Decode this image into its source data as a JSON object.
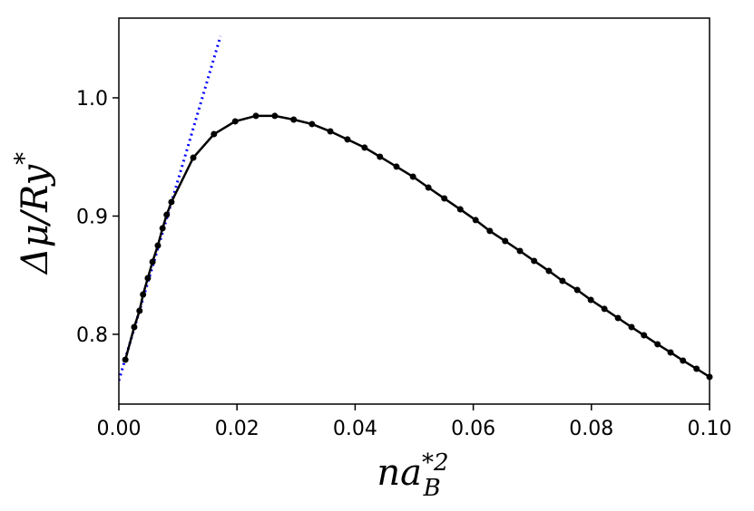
{
  "chart_data": {
    "type": "line",
    "xlabel": {
      "base": "na",
      "sub": "B",
      "sup": "*2"
    },
    "ylabel": {
      "base": "Δμ/Ry",
      "sup": "*"
    },
    "xlim": [
      0,
      0.1
    ],
    "ylim": [
      0.741,
      1.0674
    ],
    "xticks": [
      {
        "value": 0,
        "label": "0.00"
      },
      {
        "value": 0.02,
        "label": "0.02"
      },
      {
        "value": 0.04,
        "label": "0.04"
      },
      {
        "value": 0.06,
        "label": "0.06"
      },
      {
        "value": 0.08,
        "label": "0.08"
      },
      {
        "value": 0.1,
        "label": "0.10"
      }
    ],
    "yticks": [
      0.8,
      0.9,
      {
        "value": 1.0,
        "label": "1.0"
      }
    ],
    "series": [
      {
        "color": "#0000ff",
        "style": "dotted",
        "markers": false,
        "x": [
          0,
          0.0172
        ],
        "values": [
          0.7609,
          1.0521
        ]
      },
      {
        "color": "#000000",
        "style": "solid",
        "markers": true,
        "x": [
          0.0011,
          0.0026,
          0.0035,
          0.0041,
          0.0049,
          0.0057,
          0.0066,
          0.0074,
          0.0081,
          0.0089,
          0.0126,
          0.0161,
          0.0197,
          0.0232,
          0.0264,
          0.0296,
          0.0327,
          0.0358,
          0.0387,
          0.0416,
          0.0442,
          0.047,
          0.0498,
          0.0524,
          0.0551,
          0.0578,
          0.0604,
          0.0628,
          0.0654,
          0.0679,
          0.0703,
          0.0728,
          0.0751,
          0.0776,
          0.0799,
          0.0822,
          0.0845,
          0.0868,
          0.0889,
          0.0912,
          0.0934,
          0.0955,
          0.0978,
          0.1
        ],
        "values": [
          0.7785,
          0.8061,
          0.8199,
          0.8337,
          0.8475,
          0.8613,
          0.8751,
          0.8897,
          0.9011,
          0.9119,
          0.9494,
          0.9693,
          0.9801,
          0.9847,
          0.9847,
          0.9816,
          0.9778,
          0.9716,
          0.9648,
          0.9579,
          0.9502,
          0.9418,
          0.9333,
          0.9241,
          0.9149,
          0.9057,
          0.8966,
          0.8874,
          0.8789,
          0.8705,
          0.8621,
          0.8536,
          0.8452,
          0.8375,
          0.8291,
          0.8215,
          0.8138,
          0.8061,
          0.7992,
          0.7916,
          0.7847,
          0.7778,
          0.7709,
          0.764
        ]
      }
    ]
  }
}
